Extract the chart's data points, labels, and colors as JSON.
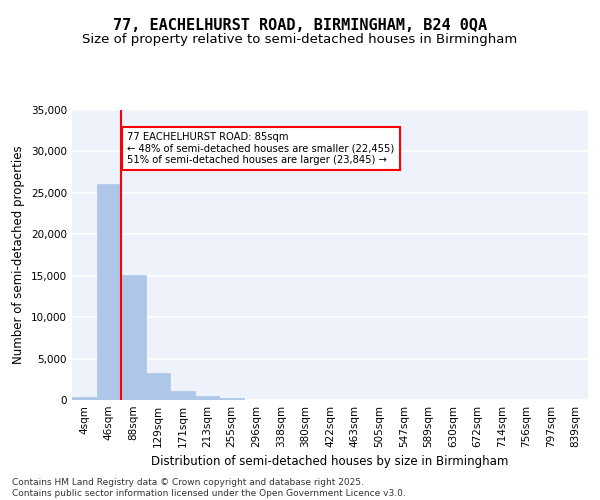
{
  "title": "77, EACHELHURST ROAD, BIRMINGHAM, B24 0QA",
  "subtitle": "Size of property relative to semi-detached houses in Birmingham",
  "xlabel": "Distribution of semi-detached houses by size in Birmingham",
  "ylabel": "Number of semi-detached properties",
  "property_size": 85,
  "property_label": "77 EACHELHURST ROAD: 85sqm",
  "pct_smaller": 48,
  "count_smaller": 22455,
  "pct_larger": 51,
  "count_larger": 23845,
  "bin_labels": [
    "4sqm",
    "46sqm",
    "88sqm",
    "129sqm",
    "171sqm",
    "213sqm",
    "255sqm",
    "296sqm",
    "338sqm",
    "380sqm",
    "422sqm",
    "463sqm",
    "505sqm",
    "547sqm",
    "589sqm",
    "630sqm",
    "672sqm",
    "714sqm",
    "756sqm",
    "797sqm",
    "839sqm"
  ],
  "bar_values": [
    400,
    26100,
    15100,
    3300,
    1100,
    500,
    200,
    50,
    0,
    0,
    0,
    0,
    0,
    0,
    0,
    0,
    0,
    0,
    0,
    0,
    0
  ],
  "bar_color": "#aec6e8",
  "bar_edge_color": "#aec6e8",
  "vline_color": "red",
  "vline_x": 1.5,
  "background_color": "#eef2fb",
  "grid_color": "white",
  "ylim": [
    0,
    35000
  ],
  "yticks": [
    0,
    5000,
    10000,
    15000,
    20000,
    25000,
    30000,
    35000
  ],
  "footer": "Contains HM Land Registry data © Crown copyright and database right 2025.\nContains public sector information licensed under the Open Government Licence v3.0.",
  "title_fontsize": 11,
  "subtitle_fontsize": 9.5,
  "axis_label_fontsize": 8.5,
  "tick_fontsize": 7.5,
  "footer_fontsize": 6.5
}
